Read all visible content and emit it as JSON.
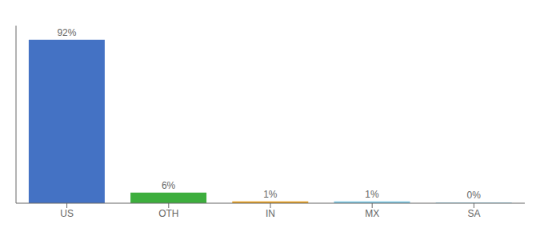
{
  "chart_data": {
    "type": "bar",
    "categories": [
      "US",
      "OTH",
      "IN",
      "MX",
      "SA"
    ],
    "values": [
      92,
      6,
      1,
      1,
      0.3
    ],
    "value_labels": [
      "92%",
      "6%",
      "1%",
      "1%",
      "0%"
    ],
    "colors": [
      "#4472c4",
      "#3dae3d",
      "#e8a020",
      "#7ec8e3",
      "#7ec8e3"
    ],
    "ylim": [
      0,
      100
    ],
    "data_labels": true,
    "tick_labels": "x",
    "grid": false
  }
}
